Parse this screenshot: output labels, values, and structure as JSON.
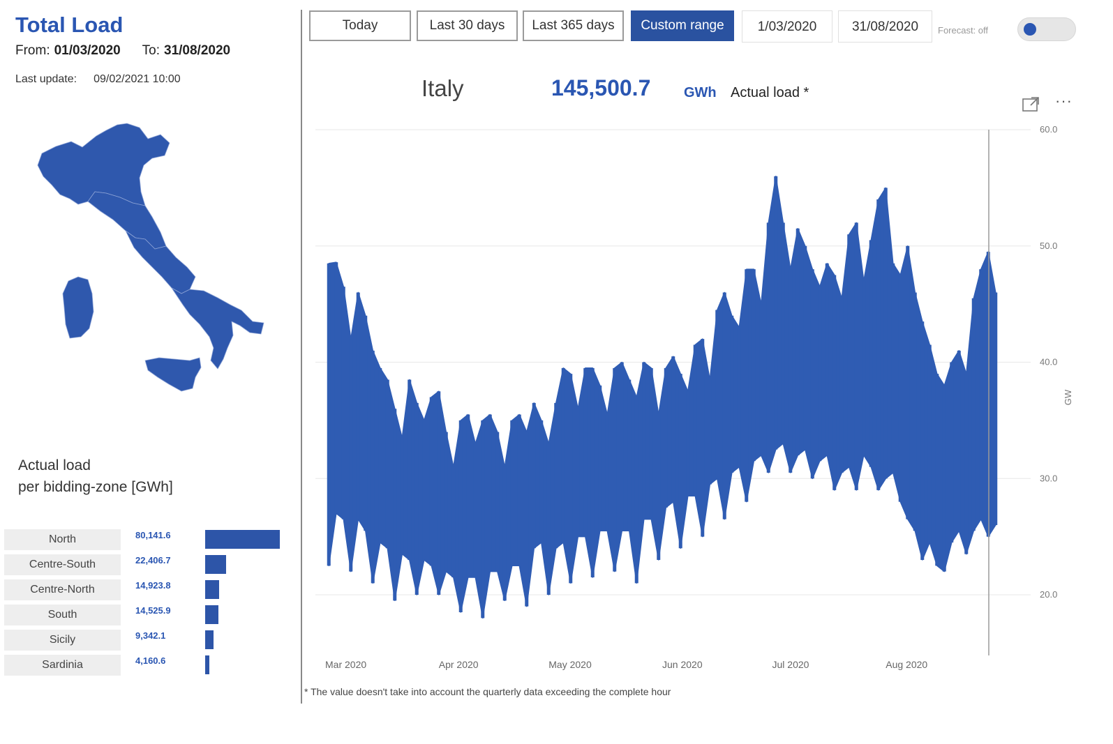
{
  "header": {
    "title": "Total Load",
    "from_label": "From:",
    "from_value": "01/03/2020",
    "to_label": "To:",
    "to_value": "31/08/2020",
    "update_label": "Last update:",
    "update_value": "09/02/2021 10:00"
  },
  "zones": {
    "title_line1": "Actual load",
    "title_line2": "per bidding-zone [GWh]",
    "items": [
      {
        "name": "North",
        "value": "80,141.6",
        "num": 80141.6
      },
      {
        "name": "Centre-South",
        "value": "22,406.7",
        "num": 22406.7
      },
      {
        "name": "Centre-North",
        "value": "14,923.8",
        "num": 14923.8
      },
      {
        "name": "South",
        "value": "14,525.9",
        "num": 14525.9
      },
      {
        "name": "Sicily",
        "value": "9,342.1",
        "num": 9342.1
      },
      {
        "name": "Sardinia",
        "value": "4,160.6",
        "num": 4160.6
      }
    ]
  },
  "toolbar": {
    "today": "Today",
    "last30": "Last 30 days",
    "last365": "Last 365 days",
    "custom": "Custom range",
    "date_from": "1/03/2020",
    "date_to": "31/08/2020",
    "forecast_label": "Forecast: off",
    "forecast_on": false
  },
  "summary": {
    "region": "Italy",
    "total": "145,500.7",
    "unit": "GWh",
    "label": "Actual load *"
  },
  "footnote": "* The value doesn't take into account the quarterly data exceeding the complete hour",
  "icons": {
    "focus": "focus-mode-icon",
    "more": "more-options-icon"
  },
  "colors": {
    "accent": "#2a56b2",
    "bar": "#2d55a8",
    "series": "#2f5cb3"
  },
  "chart_data": {
    "type": "line",
    "title": "",
    "xlabel": "",
    "ylabel": "GW",
    "ylim": [
      20.0,
      60.0
    ],
    "yticks": [
      "60.0",
      "50.0",
      "40.0",
      "30.0",
      "20.0"
    ],
    "xticks": [
      "Mar 2020",
      "Apr 2020",
      "May 2020",
      "Jun 2020",
      "Jul 2020",
      "Aug 2020"
    ],
    "series": [
      {
        "name": "Actual load",
        "x": [
          "2020-03-02",
          "2020-03-04",
          "2020-03-06",
          "2020-03-08",
          "2020-03-10",
          "2020-03-12",
          "2020-03-14",
          "2020-03-16",
          "2020-03-18",
          "2020-03-20",
          "2020-03-22",
          "2020-03-24",
          "2020-03-26",
          "2020-03-28",
          "2020-03-30",
          "2020-04-01",
          "2020-04-03",
          "2020-04-05",
          "2020-04-07",
          "2020-04-09",
          "2020-04-11",
          "2020-04-13",
          "2020-04-15",
          "2020-04-17",
          "2020-04-19",
          "2020-04-21",
          "2020-04-23",
          "2020-04-25",
          "2020-04-27",
          "2020-04-29",
          "2020-05-01",
          "2020-05-03",
          "2020-05-05",
          "2020-05-07",
          "2020-05-09",
          "2020-05-11",
          "2020-05-13",
          "2020-05-15",
          "2020-05-17",
          "2020-05-19",
          "2020-05-21",
          "2020-05-23",
          "2020-05-25",
          "2020-05-27",
          "2020-05-29",
          "2020-05-31",
          "2020-06-02",
          "2020-06-04",
          "2020-06-06",
          "2020-06-08",
          "2020-06-10",
          "2020-06-12",
          "2020-06-14",
          "2020-06-16",
          "2020-06-18",
          "2020-06-20",
          "2020-06-22",
          "2020-06-24",
          "2020-06-26",
          "2020-06-28",
          "2020-06-30",
          "2020-07-02",
          "2020-07-04",
          "2020-07-06",
          "2020-07-08",
          "2020-07-10",
          "2020-07-12",
          "2020-07-14",
          "2020-07-16",
          "2020-07-18",
          "2020-07-20",
          "2020-07-22",
          "2020-07-24",
          "2020-07-26",
          "2020-07-28",
          "2020-07-30",
          "2020-08-01",
          "2020-08-03",
          "2020-08-05",
          "2020-08-07",
          "2020-08-09",
          "2020-08-11",
          "2020-08-13",
          "2020-08-15",
          "2020-08-17",
          "2020-08-19",
          "2020-08-21",
          "2020-08-23",
          "2020-08-25",
          "2020-08-27",
          "2020-08-29",
          "2020-08-31"
        ],
        "high": [
          48.5,
          48.6,
          46.5,
          42.0,
          46.0,
          44.0,
          41.0,
          39.5,
          38.5,
          36.0,
          33.5,
          38.5,
          36.5,
          35.0,
          37.0,
          37.5,
          34.0,
          31.0,
          35.0,
          35.5,
          33.0,
          35.0,
          35.5,
          34.0,
          31.0,
          35.0,
          35.5,
          34.0,
          36.5,
          35.0,
          33.0,
          36.5,
          39.5,
          39.0,
          36.0,
          39.5,
          39.5,
          38.0,
          35.5,
          39.5,
          40.0,
          38.5,
          37.0,
          40.0,
          39.5,
          35.5,
          39.5,
          40.5,
          39.0,
          37.5,
          41.5,
          42.0,
          38.5,
          44.5,
          46.0,
          44.0,
          43.0,
          48.0,
          48.0,
          45.0,
          52.0,
          56.0,
          52.0,
          48.0,
          51.5,
          50.0,
          48.0,
          46.5,
          48.5,
          47.5,
          45.5,
          51.0,
          52.0,
          47.0,
          50.5,
          54.0,
          55.0,
          48.5,
          47.5,
          50.0,
          46.0,
          43.5,
          41.5,
          39.0,
          38.0,
          40.0,
          41.0,
          39.0,
          45.5,
          48.0,
          49.5,
          46.0
        ],
        "low": [
          22.5,
          27.0,
          26.5,
          22.0,
          26.5,
          25.5,
          21.0,
          24.5,
          24.0,
          19.5,
          23.5,
          23.0,
          20.0,
          23.0,
          22.5,
          20.0,
          22.0,
          21.5,
          18.5,
          21.5,
          21.5,
          18.0,
          22.0,
          22.0,
          19.5,
          22.5,
          22.5,
          19.0,
          24.0,
          24.5,
          20.0,
          24.0,
          24.5,
          21.0,
          25.0,
          25.0,
          21.5,
          25.5,
          25.5,
          22.0,
          25.5,
          25.5,
          21.0,
          26.5,
          26.5,
          23.0,
          27.5,
          28.0,
          24.0,
          28.5,
          28.5,
          25.0,
          29.5,
          30.0,
          26.5,
          30.5,
          31.0,
          28.0,
          31.5,
          32.0,
          30.5,
          32.5,
          33.0,
          30.5,
          32.0,
          32.5,
          30.0,
          31.5,
          32.0,
          29.0,
          30.5,
          31.0,
          29.0,
          32.0,
          31.0,
          29.0,
          30.0,
          30.5,
          28.0,
          26.5,
          25.5,
          23.0,
          24.5,
          22.5,
          22.0,
          24.5,
          25.5,
          23.5,
          25.5,
          26.5,
          25.0,
          26.0
        ]
      }
    ]
  }
}
